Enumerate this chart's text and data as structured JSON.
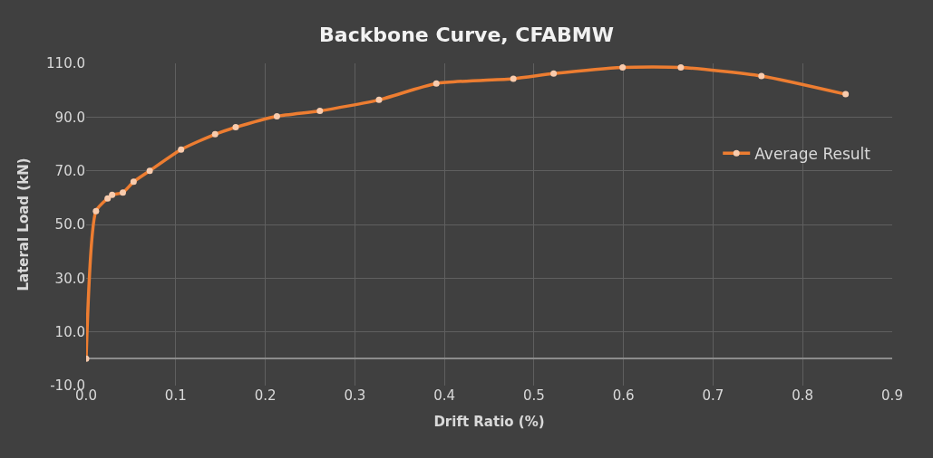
{
  "chart_data": {
    "type": "line",
    "title": "Backbone Curve, CFABMW",
    "xlabel": "Drift Ratio (%)",
    "ylabel": "Lateral Load (kN)",
    "x": [
      0,
      0.011,
      0.024,
      0.029,
      0.041,
      0.053,
      0.071,
      0.106,
      0.144,
      0.167,
      0.213,
      0.261,
      0.327,
      0.391,
      0.477,
      0.522,
      0.599,
      0.664,
      0.754,
      0.848
    ],
    "series": [
      {
        "name": "Average Result",
        "color": "#ed7d31",
        "values": [
          0,
          55.0,
          59.7,
          61.0,
          61.9,
          65.9,
          70.0,
          77.9,
          83.6,
          86.2,
          90.3,
          92.3,
          96.4,
          102.5,
          104.3,
          106.2,
          108.5,
          108.5,
          105.3,
          98.5
        ]
      }
    ],
    "xlim": [
      0,
      0.9
    ],
    "xticks": [
      {
        "value": 0,
        "label": "0.0"
      },
      0.1,
      0.2,
      0.3,
      0.4,
      0.5,
      0.6,
      0.7,
      0.8,
      0.9
    ],
    "ylim": [
      -10,
      110
    ],
    "yticks": [
      {
        "value": -10,
        "label": "-10.0"
      },
      {
        "value": 10,
        "label": "10.0"
      },
      {
        "value": 30,
        "label": "30.0"
      },
      {
        "value": 50,
        "label": "50.0"
      },
      {
        "value": 70,
        "label": "70.0"
      },
      {
        "value": 90,
        "label": "90.0"
      },
      {
        "value": 110,
        "label": "110.0"
      }
    ],
    "grid": true,
    "legend": "right",
    "marker": "circle",
    "line_style": "solid"
  }
}
